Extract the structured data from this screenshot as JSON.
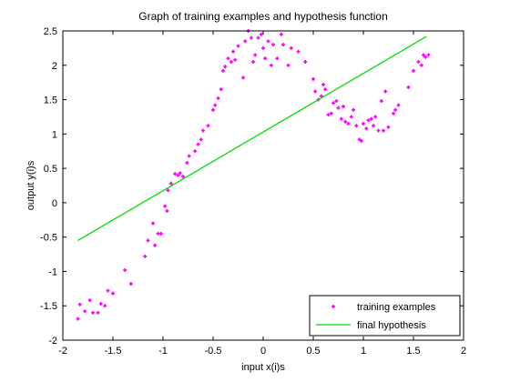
{
  "chart_data": {
    "type": "scatter",
    "title": "Graph of training examples and hypothesis function",
    "xlabel": "input x(i)s",
    "ylabel": "output y(i)s",
    "xlim": [
      -2,
      2
    ],
    "ylim": [
      -2,
      2.5
    ],
    "xticks": [
      -2,
      -1.5,
      -1,
      -0.5,
      0,
      0.5,
      1,
      1.5,
      2
    ],
    "xtick_labels": [
      "-2",
      "-1.5",
      "-1",
      "-0.5",
      "0",
      "0.5",
      "1",
      "1.5",
      "2"
    ],
    "yticks": [
      -2,
      -1.5,
      -1,
      -0.5,
      0,
      0.5,
      1,
      1.5,
      2,
      2.5
    ],
    "ytick_labels": [
      "-2",
      "-1.5",
      "-1",
      "-0.5",
      "0",
      "0.5",
      "1",
      "1.5",
      "2",
      "2.5"
    ],
    "grid": false,
    "legend_position": "bottom-right",
    "series": [
      {
        "name": "training examples",
        "type": "scatter",
        "color": "#ff00ff",
        "marker": "plus",
        "points": [
          [
            -1.85,
            -1.69
          ],
          [
            -1.83,
            -1.48
          ],
          [
            -1.78,
            -1.58
          ],
          [
            -1.73,
            -1.42
          ],
          [
            -1.7,
            -1.6
          ],
          [
            -1.65,
            -1.6
          ],
          [
            -1.62,
            -1.47
          ],
          [
            -1.58,
            -1.5
          ],
          [
            -1.55,
            -1.28
          ],
          [
            -1.5,
            -1.32
          ],
          [
            -1.38,
            -0.98
          ],
          [
            -1.32,
            -1.18
          ],
          [
            -1.18,
            -0.78
          ],
          [
            -1.15,
            -0.55
          ],
          [
            -1.1,
            -0.3
          ],
          [
            -1.08,
            -0.62
          ],
          [
            -1.05,
            -0.45
          ],
          [
            -1.02,
            -0.45
          ],
          [
            -0.98,
            -0.05
          ],
          [
            -0.96,
            -0.12
          ],
          [
            -0.95,
            0.18
          ],
          [
            -0.92,
            0.28
          ],
          [
            -0.88,
            0.42
          ],
          [
            -0.85,
            0.4
          ],
          [
            -0.83,
            0.43
          ],
          [
            -0.8,
            0.38
          ],
          [
            -0.76,
            0.58
          ],
          [
            -0.74,
            0.68
          ],
          [
            -0.68,
            0.75
          ],
          [
            -0.65,
            0.85
          ],
          [
            -0.62,
            0.92
          ],
          [
            -0.6,
            1.05
          ],
          [
            -0.55,
            1.12
          ],
          [
            -0.5,
            1.35
          ],
          [
            -0.48,
            1.42
          ],
          [
            -0.45,
            1.52
          ],
          [
            -0.42,
            1.65
          ],
          [
            -0.4,
            1.92
          ],
          [
            -0.38,
            1.98
          ],
          [
            -0.35,
            2.1
          ],
          [
            -0.32,
            2.05
          ],
          [
            -0.3,
            2.2
          ],
          [
            -0.28,
            2.08
          ],
          [
            -0.25,
            2.28
          ],
          [
            -0.2,
            1.82
          ],
          [
            -0.18,
            2.35
          ],
          [
            -0.15,
            2.5
          ],
          [
            -0.12,
            2.4
          ],
          [
            -0.1,
            2.05
          ],
          [
            -0.08,
            2.15
          ],
          [
            -0.05,
            2.4
          ],
          [
            -0.02,
            2.45
          ],
          [
            0.0,
            2.25
          ],
          [
            0.02,
            2.1
          ],
          [
            0.05,
            2.35
          ],
          [
            0.08,
            2.0
          ],
          [
            0.1,
            2.3
          ],
          [
            0.14,
            2.1
          ],
          [
            0.18,
            2.45
          ],
          [
            0.2,
            2.3
          ],
          [
            0.25,
            2.0
          ],
          [
            0.28,
            2.25
          ],
          [
            0.35,
            2.2
          ],
          [
            0.42,
            2.05
          ],
          [
            0.5,
            1.8
          ],
          [
            0.52,
            1.62
          ],
          [
            0.55,
            1.5
          ],
          [
            0.58,
            1.55
          ],
          [
            0.6,
            1.72
          ],
          [
            0.62,
            1.65
          ],
          [
            0.65,
            1.28
          ],
          [
            0.68,
            1.3
          ],
          [
            0.7,
            1.45
          ],
          [
            0.73,
            1.48
          ],
          [
            0.75,
            1.38
          ],
          [
            0.78,
            1.22
          ],
          [
            0.8,
            1.4
          ],
          [
            0.82,
            1.18
          ],
          [
            0.85,
            1.15
          ],
          [
            0.88,
            1.25
          ],
          [
            0.9,
            1.35
          ],
          [
            0.93,
            1.12
          ],
          [
            0.96,
            0.92
          ],
          [
            0.98,
            0.9
          ],
          [
            1.0,
            1.15
          ],
          [
            1.03,
            1.08
          ],
          [
            1.05,
            1.2
          ],
          [
            1.08,
            1.22
          ],
          [
            1.1,
            1.12
          ],
          [
            1.12,
            1.25
          ],
          [
            1.15,
            1.05
          ],
          [
            1.18,
            1.48
          ],
          [
            1.2,
            1.05
          ],
          [
            1.22,
            1.62
          ],
          [
            1.25,
            1.1
          ],
          [
            1.3,
            1.3
          ],
          [
            1.32,
            1.35
          ],
          [
            1.35,
            1.42
          ],
          [
            1.45,
            1.68
          ],
          [
            1.5,
            1.92
          ],
          [
            1.55,
            2.05
          ],
          [
            1.58,
            2.0
          ],
          [
            1.6,
            2.15
          ],
          [
            1.62,
            2.12
          ],
          [
            1.65,
            2.15
          ]
        ]
      },
      {
        "name": "final hypothesis",
        "type": "line",
        "color": "#00dd00",
        "points": [
          [
            -1.85,
            -0.55
          ],
          [
            1.63,
            2.42
          ]
        ]
      }
    ]
  }
}
